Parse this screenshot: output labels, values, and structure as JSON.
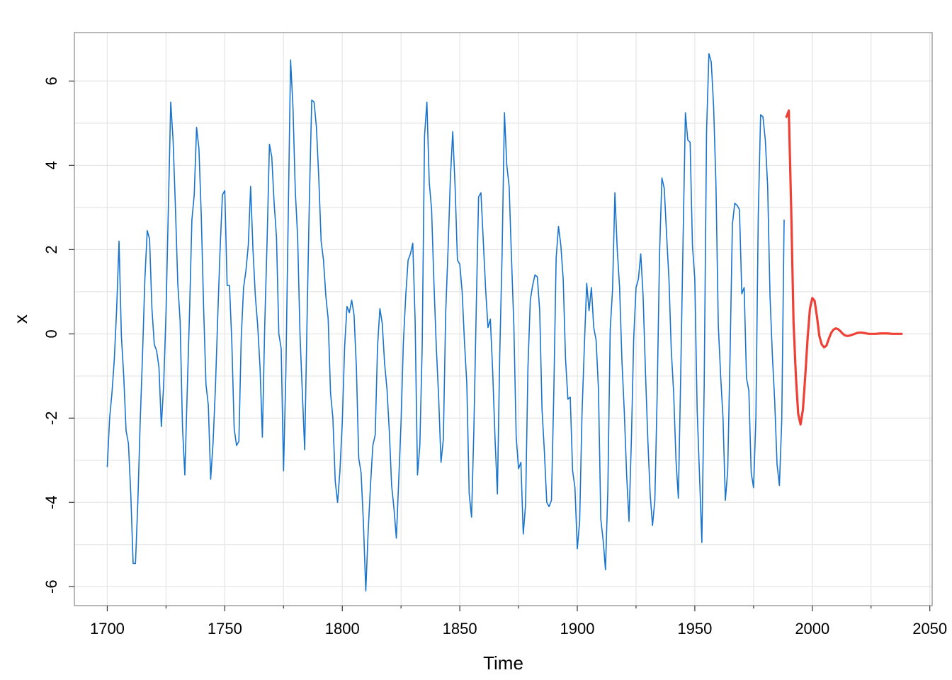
{
  "chart_data": {
    "type": "line",
    "title": "",
    "xlabel": "Time",
    "ylabel": "x",
    "xlim": [
      1686,
      2051
    ],
    "ylim": [
      -6.45,
      7.15
    ],
    "x_ticks": [
      1700,
      1750,
      1800,
      1850,
      1900,
      1950,
      2000,
      2050
    ],
    "x_tick_labels": [
      "1700",
      "1750",
      "1800",
      "1850",
      "1900",
      "1950",
      "2000",
      "2050"
    ],
    "x_minor_ticks": [
      1725,
      1775,
      1825,
      1875,
      1925,
      1975,
      2025
    ],
    "y_ticks": [
      -6,
      -4,
      -2,
      0,
      2,
      4,
      6
    ],
    "y_tick_labels": [
      "-6",
      "-4",
      "-2",
      "0",
      "2",
      "4",
      "6"
    ],
    "grid": true,
    "colors": {
      "observed": "#1874CD",
      "forecast": "#EE4035",
      "grid": "#E5E5E5",
      "frame": "#A0A0A0"
    },
    "series": [
      {
        "x": [
          1700,
          1701,
          1702,
          1703,
          1704,
          1705,
          1706,
          1707,
          1708,
          1709,
          1710,
          1711,
          1712,
          1713,
          1714,
          1715,
          1716,
          1717,
          1718,
          1719,
          1720,
          1721,
          1722,
          1723,
          1724,
          1725,
          1726,
          1727,
          1728,
          1729,
          1730,
          1731,
          1732,
          1733,
          1734,
          1735,
          1736,
          1737,
          1738,
          1739,
          1740,
          1741,
          1742,
          1743,
          1744,
          1745,
          1746,
          1747,
          1748,
          1749,
          1750,
          1751,
          1752,
          1753,
          1754,
          1755,
          1756,
          1757,
          1758,
          1759,
          1760,
          1761,
          1762,
          1763,
          1764,
          1765,
          1766,
          1767,
          1768,
          1769,
          1770,
          1771,
          1772,
          1773,
          1774,
          1775,
          1776,
          1777,
          1778,
          1779,
          1780,
          1781,
          1782,
          1783,
          1784,
          1785,
          1786,
          1787,
          1788,
          1789,
          1790,
          1791,
          1792,
          1793,
          1794,
          1795,
          1796,
          1797,
          1798,
          1799,
          1800,
          1801,
          1802,
          1803,
          1804,
          1805,
          1806,
          1807,
          1808,
          1809,
          1810,
          1811,
          1812,
          1813,
          1814,
          1815,
          1816,
          1817,
          1818,
          1819,
          1820,
          1821,
          1822,
          1823,
          1824,
          1825,
          1826,
          1827,
          1828,
          1829,
          1830,
          1831,
          1832,
          1833,
          1834,
          1835,
          1836,
          1837,
          1838,
          1839,
          1840,
          1841,
          1842,
          1843,
          1844,
          1845,
          1846,
          1847,
          1848,
          1849,
          1850,
          1851,
          1852,
          1853,
          1854,
          1855,
          1856,
          1857,
          1858,
          1859,
          1860,
          1861,
          1862,
          1863,
          1864,
          1865,
          1866,
          1867,
          1868,
          1869,
          1870,
          1871,
          1872,
          1873,
          1874,
          1875,
          1876,
          1877,
          1878,
          1879,
          1880,
          1881,
          1882,
          1883,
          1884,
          1885,
          1886,
          1887,
          1888,
          1889,
          1890,
          1891,
          1892,
          1893,
          1894,
          1895,
          1896,
          1897,
          1898,
          1899,
          1900,
          1901,
          1902,
          1903,
          1904,
          1905,
          1906,
          1907,
          1908,
          1909,
          1910,
          1911,
          1912,
          1913,
          1914,
          1915,
          1916,
          1917,
          1918,
          1919,
          1920,
          1921,
          1922,
          1923,
          1924,
          1925,
          1926,
          1927,
          1928,
          1929,
          1930,
          1931,
          1932,
          1933,
          1934,
          1935,
          1936,
          1937,
          1938,
          1939,
          1940,
          1941,
          1942,
          1943,
          1944,
          1945,
          1946,
          1947,
          1948,
          1949,
          1950,
          1951,
          1952,
          1953,
          1954,
          1955,
          1956,
          1957,
          1958,
          1959,
          1960,
          1961,
          1962,
          1963,
          1964,
          1965,
          1966,
          1967,
          1968,
          1969,
          1970,
          1971,
          1972,
          1973,
          1974,
          1975,
          1976,
          1977,
          1978,
          1979,
          1980,
          1981,
          1982,
          1983,
          1984,
          1985,
          1986,
          1987,
          1988
        ],
        "values": [
          -3.15,
          -2.0,
          -1.4,
          -0.6,
          0.6,
          2.2,
          -0.05,
          -1.0,
          -2.3,
          -2.6,
          -3.8,
          -5.45,
          -5.45,
          -4.0,
          -2.1,
          -0.5,
          1.3,
          2.45,
          2.25,
          0.6,
          -0.25,
          -0.4,
          -0.8,
          -2.2,
          -1.2,
          0.5,
          3.0,
          5.5,
          4.6,
          3.0,
          1.2,
          0.3,
          -2.2,
          -3.35,
          -1.4,
          0.5,
          2.7,
          3.3,
          4.9,
          4.4,
          2.8,
          0.6,
          -1.2,
          -1.7,
          -3.45,
          -2.6,
          -1.3,
          0.4,
          2.0,
          3.3,
          3.4,
          1.15,
          1.15,
          -0.2,
          -2.25,
          -2.65,
          -2.55,
          -0.1,
          1.1,
          1.5,
          2.1,
          3.5,
          2.0,
          0.9,
          0.2,
          -0.8,
          -2.45,
          0.2,
          2.2,
          4.5,
          4.2,
          3.1,
          2.3,
          0.0,
          -0.35,
          -3.25,
          -0.9,
          2.8,
          6.5,
          5.4,
          3.4,
          2.3,
          0.0,
          -1.4,
          -2.75,
          0.3,
          3.2,
          5.55,
          5.5,
          4.9,
          3.7,
          2.2,
          1.75,
          0.9,
          0.35,
          -1.4,
          -2.0,
          -3.5,
          -4.0,
          -3.25,
          -2.1,
          -0.3,
          0.65,
          0.5,
          0.8,
          0.45,
          -0.8,
          -2.95,
          -3.3,
          -4.5,
          -6.1,
          -4.7,
          -3.6,
          -2.65,
          -2.4,
          -0.3,
          0.6,
          0.25,
          -0.7,
          -1.3,
          -2.3,
          -3.6,
          -4.15,
          -4.85,
          -3.5,
          -2.1,
          -0.2,
          0.9,
          1.75,
          1.9,
          2.15,
          0.3,
          -3.35,
          -2.65,
          -0.3,
          4.7,
          5.5,
          3.6,
          2.95,
          1.2,
          -0.3,
          -1.5,
          -3.05,
          -2.5,
          0.5,
          2.0,
          3.7,
          4.8,
          3.5,
          1.75,
          1.65,
          1.0,
          -0.2,
          -1.2,
          -3.8,
          -4.35,
          -2.25,
          0.6,
          3.25,
          3.35,
          2.2,
          1.05,
          0.15,
          0.35,
          -0.9,
          -2.5,
          -3.8,
          -0.5,
          1.9,
          5.25,
          4.0,
          3.5,
          1.8,
          0.2,
          -2.45,
          -3.2,
          -3.05,
          -4.75,
          -4.05,
          -0.8,
          0.8,
          1.15,
          1.4,
          1.35,
          0.55,
          -1.8,
          -2.8,
          -4.0,
          -4.1,
          -3.95,
          -1.4,
          1.8,
          2.55,
          2.1,
          1.3,
          -0.6,
          -1.55,
          -1.5,
          -3.25,
          -3.65,
          -5.1,
          -4.45,
          -1.9,
          -0.3,
          1.2,
          0.55,
          1.1,
          0.15,
          -0.15,
          -1.3,
          -4.4,
          -4.9,
          -5.6,
          -3.7,
          0.1,
          1.05,
          3.35,
          2.0,
          1.1,
          -0.65,
          -1.85,
          -3.35,
          -4.45,
          -2.55,
          -0.1,
          1.1,
          1.3,
          1.9,
          0.9,
          -0.9,
          -2.5,
          -3.8,
          -4.55,
          -3.95,
          -1.4,
          1.9,
          3.7,
          3.45,
          2.35,
          1.3,
          -0.4,
          -1.4,
          -3.0,
          -3.9,
          -1.0,
          2.2,
          5.25,
          4.6,
          4.55,
          2.1,
          1.3,
          -1.8,
          -3.35,
          -4.95,
          -1.2,
          4.8,
          6.65,
          6.45,
          5.4,
          3.55,
          0.2,
          -1.0,
          -2.0,
          -3.95,
          -3.25,
          -0.5,
          2.6,
          3.1,
          3.05,
          2.95,
          0.95,
          1.1,
          -1.05,
          -1.35,
          -3.3,
          -3.65,
          -2.0,
          2.8,
          5.2,
          5.15,
          4.6,
          3.5,
          0.9,
          -0.5,
          -1.6,
          -3.1,
          -3.6,
          -2.05,
          2.7
        ],
        "color": "#1874CD"
      },
      {
        "x": [
          1989,
          1990,
          1991,
          1992,
          1993,
          1994,
          1995,
          1996,
          1997,
          1998,
          1999,
          2000,
          2001,
          2002,
          2003,
          2004,
          2005,
          2006,
          2007,
          2008,
          2009,
          2010,
          2011,
          2012,
          2013,
          2014,
          2015,
          2016,
          2017,
          2018,
          2019,
          2020,
          2021,
          2022,
          2023,
          2024,
          2025,
          2026,
          2027,
          2028,
          2029,
          2030,
          2031,
          2032,
          2033,
          2034,
          2035,
          2036,
          2037,
          2038
        ],
        "values": [
          5.15,
          5.3,
          3.0,
          0.3,
          -1.0,
          -1.9,
          -2.15,
          -1.8,
          -1.0,
          -0.1,
          0.6,
          0.85,
          0.78,
          0.4,
          -0.05,
          -0.25,
          -0.32,
          -0.28,
          -0.12,
          0.02,
          0.1,
          0.13,
          0.11,
          0.06,
          0.0,
          -0.04,
          -0.05,
          -0.04,
          -0.02,
          0.0,
          0.02,
          0.03,
          0.03,
          0.02,
          0.01,
          0.0,
          0.0,
          0.0,
          0.0,
          0.005,
          0.01,
          0.01,
          0.01,
          0.01,
          0.005,
          0.0,
          0.0,
          0.0,
          0.0,
          0.0
        ],
        "color": "#EE4035"
      }
    ]
  }
}
